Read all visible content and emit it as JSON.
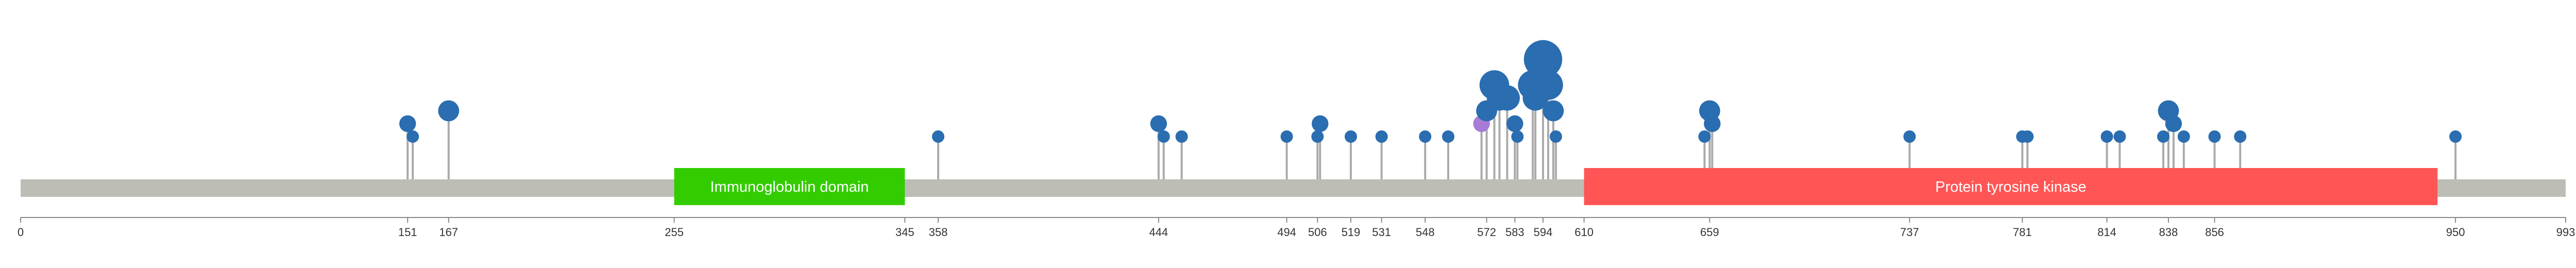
{
  "chart_data": {
    "type": "lollipop",
    "protein_length": 993,
    "backbone_color": "#bdbdb6",
    "axis_ticks": [
      0,
      151,
      167,
      255,
      345,
      358,
      444,
      494,
      506,
      519,
      531,
      548,
      572,
      583,
      594,
      610,
      659,
      737,
      781,
      814,
      838,
      856,
      950,
      993
    ],
    "domains": [
      {
        "label": "Immunoglobulin domain",
        "start": 255,
        "end": 345,
        "color": "#33cc00"
      },
      {
        "label": "Protein tyrosine kinase",
        "start": 610,
        "end": 943,
        "color": "#ff5555"
      }
    ],
    "colors": {
      "primary": "#2a6db0",
      "secondary": "#a77bd6",
      "stem": "#aaaaaa"
    },
    "mutations": [
      {
        "pos": 151,
        "count": 2,
        "color": "primary"
      },
      {
        "pos": 153,
        "count": 1,
        "color": "primary"
      },
      {
        "pos": 167,
        "count": 3,
        "color": "primary"
      },
      {
        "pos": 358,
        "count": 1,
        "color": "primary"
      },
      {
        "pos": 444,
        "count": 2,
        "color": "primary"
      },
      {
        "pos": 446,
        "count": 1,
        "color": "primary"
      },
      {
        "pos": 453,
        "count": 1,
        "color": "primary"
      },
      {
        "pos": 494,
        "count": 1,
        "color": "primary"
      },
      {
        "pos": 506,
        "count": 1,
        "color": "primary"
      },
      {
        "pos": 507,
        "count": 2,
        "color": "primary"
      },
      {
        "pos": 519,
        "count": 1,
        "color": "primary"
      },
      {
        "pos": 531,
        "count": 1,
        "color": "primary"
      },
      {
        "pos": 548,
        "count": 1,
        "color": "primary"
      },
      {
        "pos": 557,
        "count": 1,
        "color": "primary"
      },
      {
        "pos": 570,
        "count": 2,
        "color": "secondary"
      },
      {
        "pos": 572,
        "count": 3,
        "color": "primary"
      },
      {
        "pos": 575,
        "count": 5,
        "color": "primary"
      },
      {
        "pos": 577,
        "count": 4,
        "color": "primary"
      },
      {
        "pos": 580,
        "count": 4,
        "color": "primary"
      },
      {
        "pos": 583,
        "count": 2,
        "color": "primary"
      },
      {
        "pos": 584,
        "count": 1,
        "color": "primary"
      },
      {
        "pos": 590,
        "count": 5,
        "color": "primary"
      },
      {
        "pos": 591,
        "count": 4,
        "color": "primary"
      },
      {
        "pos": 594,
        "count": 7,
        "color": "primary"
      },
      {
        "pos": 596,
        "count": 5,
        "color": "primary"
      },
      {
        "pos": 598,
        "count": 3,
        "color": "primary"
      },
      {
        "pos": 599,
        "count": 1,
        "color": "primary"
      },
      {
        "pos": 657,
        "count": 1,
        "color": "primary"
      },
      {
        "pos": 659,
        "count": 3,
        "color": "primary"
      },
      {
        "pos": 660,
        "count": 2,
        "color": "primary"
      },
      {
        "pos": 737,
        "count": 1,
        "color": "primary"
      },
      {
        "pos": 781,
        "count": 1,
        "color": "primary"
      },
      {
        "pos": 783,
        "count": 1,
        "color": "primary"
      },
      {
        "pos": 814,
        "count": 1,
        "color": "primary"
      },
      {
        "pos": 819,
        "count": 1,
        "color": "primary"
      },
      {
        "pos": 836,
        "count": 1,
        "color": "primary"
      },
      {
        "pos": 838,
        "count": 3,
        "color": "primary"
      },
      {
        "pos": 840,
        "count": 2,
        "color": "primary"
      },
      {
        "pos": 844,
        "count": 1,
        "color": "primary"
      },
      {
        "pos": 856,
        "count": 1,
        "color": "primary"
      },
      {
        "pos": 866,
        "count": 1,
        "color": "primary"
      },
      {
        "pos": 950,
        "count": 1,
        "color": "primary"
      }
    ]
  }
}
